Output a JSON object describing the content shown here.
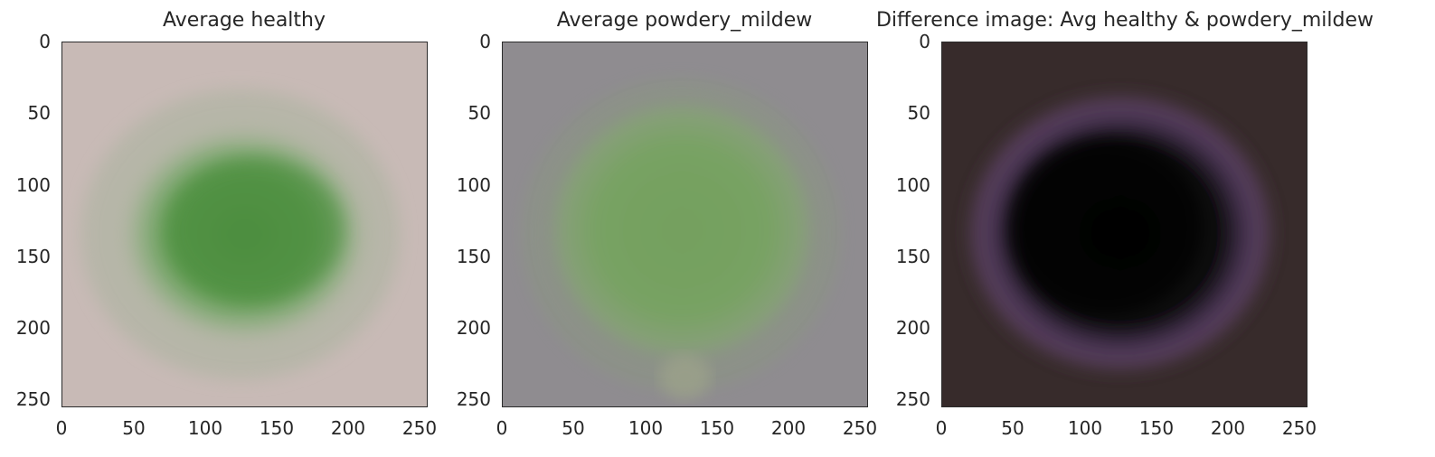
{
  "chart_data": [
    {
      "type": "heatmap",
      "title": "Average healthy",
      "xlim": [
        0,
        256
      ],
      "ylim": [
        256,
        0
      ],
      "x_ticks": [
        "0",
        "50",
        "100",
        "150",
        "200",
        "250"
      ],
      "y_ticks": [
        "0",
        "50",
        "100",
        "150",
        "200",
        "250"
      ],
      "grid": false,
      "colors": {
        "background": "#c6b8b4",
        "leaf": "#5c9a4c",
        "leaf_core": "#4e8e40"
      }
    },
    {
      "type": "heatmap",
      "title": "Average powdery_mildew",
      "xlim": [
        0,
        256
      ],
      "ylim": [
        256,
        0
      ],
      "x_ticks": [
        "0",
        "50",
        "100",
        "150",
        "200",
        "250"
      ],
      "y_ticks": [
        "0",
        "50",
        "100",
        "150",
        "200",
        "250"
      ],
      "grid": false,
      "colors": {
        "background": "#8e8b8e",
        "leaf": "#77a262",
        "leaf_core": "#6f9c5a"
      }
    },
    {
      "type": "heatmap",
      "title": "Difference image: Avg healthy & powdery_mildew",
      "xlim": [
        0,
        256
      ],
      "ylim": [
        256,
        0
      ],
      "x_ticks": [
        "0",
        "50",
        "100",
        "150",
        "200",
        "250"
      ],
      "y_ticks": [
        "0",
        "50",
        "100",
        "150",
        "200",
        "250"
      ],
      "grid": false,
      "colors": {
        "background": "#382c2c",
        "ring": "#6e4a78",
        "core": "#050705"
      }
    }
  ]
}
